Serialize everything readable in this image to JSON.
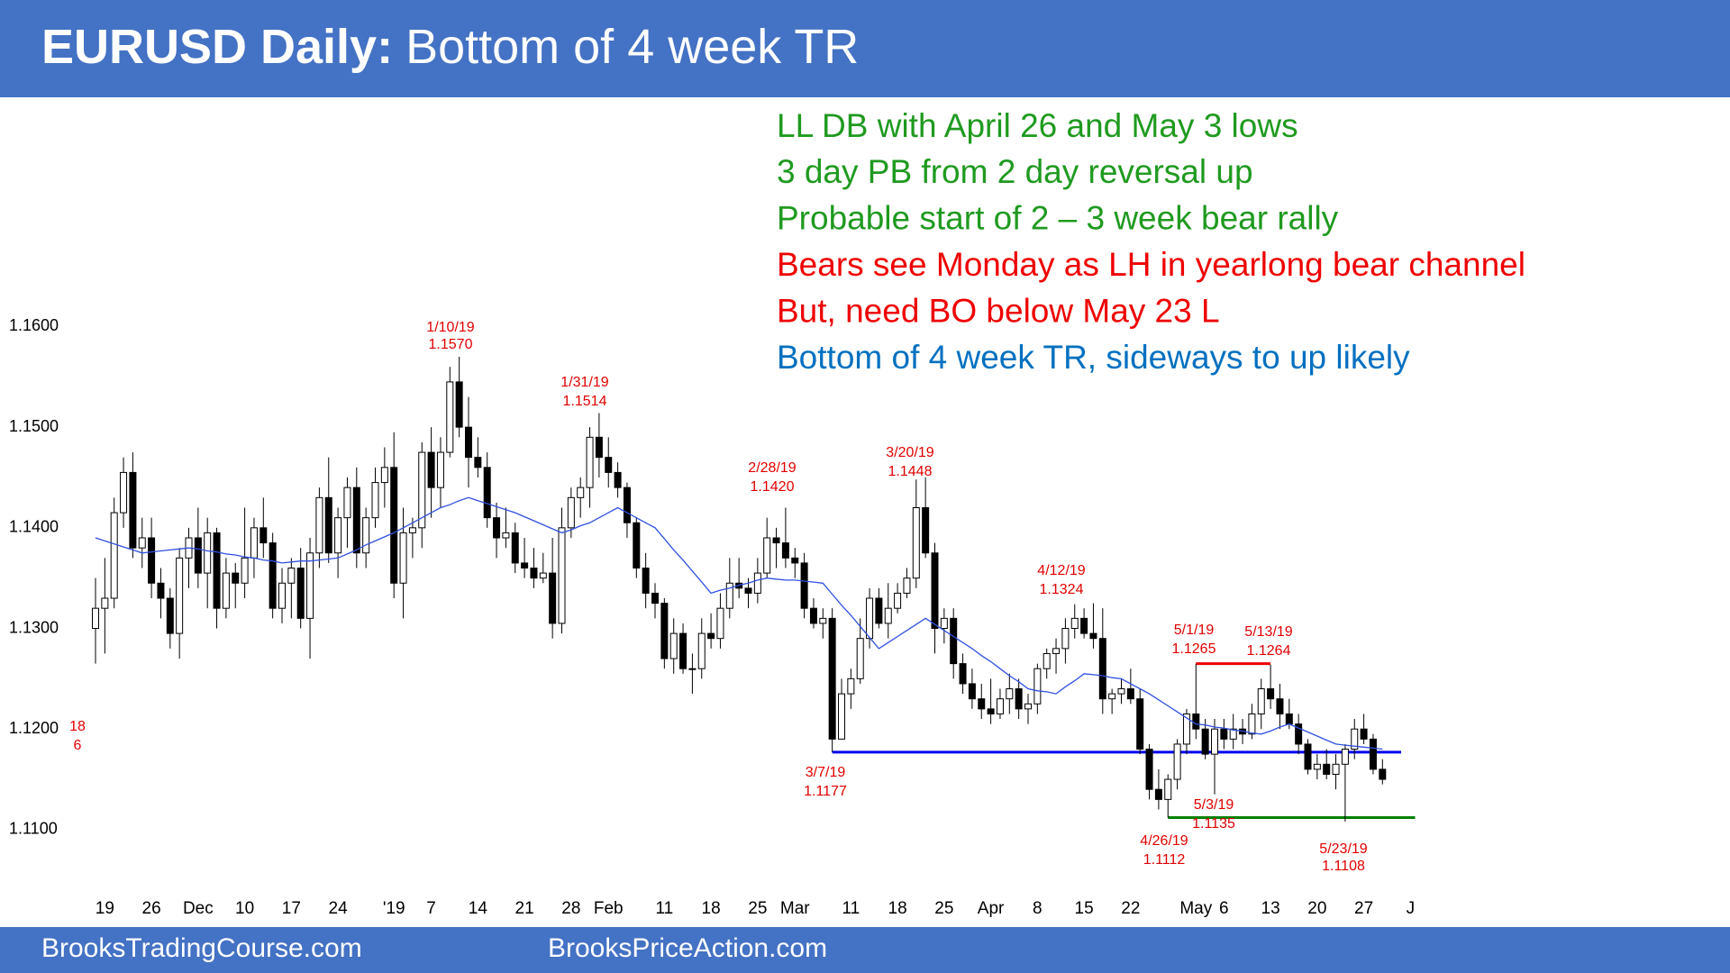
{
  "header": {
    "title_bold": "EURUSD Daily:",
    "title_rest": "Bottom of 4 week TR"
  },
  "notes": [
    {
      "text": "LL DB with April 26 and May 3 lows",
      "color": "#1f9a1f"
    },
    {
      "text": "3 day PB from 2 day reversal up",
      "color": "#1f9a1f"
    },
    {
      "text": "Probable start of 2 – 3 week bear rally",
      "color": "#1f9a1f"
    },
    {
      "text": "Bears see Monday as LH in yearlong bear channel",
      "color": "#ee0000"
    },
    {
      "text": "But, need BO below May 23 L",
      "color": "#ee0000"
    },
    {
      "text": "Bottom of 4 week TR, sideways to up likely",
      "color": "#0070c0"
    }
  ],
  "chart_data": {
    "type": "candlestick",
    "open": [
      1.13,
      1.132,
      1.133,
      1.1415,
      1.1455,
      1.138,
      1.139,
      1.1345,
      1.133,
      1.1295,
      1.137,
      1.139,
      1.1355,
      1.1395,
      1.132,
      1.1355,
      1.1345,
      1.137,
      1.14,
      1.1385,
      1.132,
      1.1345,
      1.136,
      1.131,
      1.1375,
      1.143,
      1.1375,
      1.141,
      1.144,
      1.1375,
      1.141,
      1.1445,
      1.146,
      1.1345,
      1.1395,
      1.14,
      1.1475,
      1.144,
      1.1475,
      1.1545,
      1.15,
      1.147,
      1.146,
      1.141,
      1.139,
      1.1395,
      1.1365,
      1.136,
      1.135,
      1.1355,
      1.1305,
      1.14,
      1.143,
      1.144,
      1.149,
      1.147,
      1.1455,
      1.144,
      1.1405,
      1.136,
      1.1335,
      1.1325,
      1.127,
      1.1295,
      1.126,
      1.126,
      1.1295,
      1.129,
      1.132,
      1.1345,
      1.134,
      1.1335,
      1.1355,
      1.139,
      1.1385,
      1.137,
      1.1365,
      1.132,
      1.1305,
      1.131,
      1.119,
      1.1235,
      1.125,
      1.129,
      1.133,
      1.1305,
      1.132,
      1.1335,
      1.135,
      1.142,
      1.1375,
      1.13,
      1.131,
      1.1265,
      1.1245,
      1.123,
      1.122,
      1.1215,
      1.123,
      1.124,
      1.122,
      1.1225,
      1.126,
      1.1275,
      1.128,
      1.13,
      1.131,
      1.1295,
      1.129,
      1.123,
      1.1235,
      1.124,
      1.123,
      1.118,
      1.114,
      1.113,
      1.115,
      1.1185,
      1.1215,
      1.12,
      1.1175,
      1.12,
      1.119,
      1.12,
      1.1195,
      1.1215,
      1.124,
      1.123,
      1.1215,
      1.1205,
      1.1185,
      1.116,
      1.1165,
      1.1155,
      1.1165,
      1.118,
      1.12,
      1.119,
      1.116
    ],
    "high": [
      1.135,
      1.137,
      1.143,
      1.147,
      1.1475,
      1.141,
      1.141,
      1.136,
      1.134,
      1.138,
      1.14,
      1.142,
      1.141,
      1.14,
      1.137,
      1.1365,
      1.142,
      1.141,
      1.143,
      1.1395,
      1.136,
      1.137,
      1.138,
      1.139,
      1.144,
      1.147,
      1.142,
      1.145,
      1.146,
      1.142,
      1.146,
      1.148,
      1.1495,
      1.142,
      1.141,
      1.1485,
      1.15,
      1.149,
      1.156,
      1.157,
      1.153,
      1.149,
      1.1475,
      1.1425,
      1.142,
      1.1405,
      1.139,
      1.138,
      1.1375,
      1.139,
      1.142,
      1.144,
      1.145,
      1.15,
      1.1514,
      1.149,
      1.1465,
      1.1445,
      1.141,
      1.1375,
      1.1345,
      1.133,
      1.131,
      1.1305,
      1.1275,
      1.131,
      1.1315,
      1.1335,
      1.137,
      1.137,
      1.135,
      1.137,
      1.141,
      1.14,
      1.142,
      1.138,
      1.1375,
      1.133,
      1.132,
      1.132,
      1.125,
      1.126,
      1.131,
      1.134,
      1.134,
      1.1345,
      1.1345,
      1.136,
      1.1448,
      1.145,
      1.1385,
      1.132,
      1.132,
      1.1275,
      1.126,
      1.1245,
      1.125,
      1.124,
      1.1255,
      1.125,
      1.1235,
      1.1265,
      1.128,
      1.129,
      1.131,
      1.1324,
      1.132,
      1.1325,
      1.132,
      1.124,
      1.125,
      1.126,
      1.124,
      1.1185,
      1.116,
      1.1155,
      1.119,
      1.122,
      1.1265,
      1.121,
      1.121,
      1.121,
      1.1215,
      1.121,
      1.1225,
      1.125,
      1.1264,
      1.1245,
      1.123,
      1.1215,
      1.119,
      1.1175,
      1.118,
      1.1175,
      1.1185,
      1.121,
      1.1215,
      1.1195,
      1.117
    ],
    "low": [
      1.1265,
      1.1275,
      1.132,
      1.14,
      1.137,
      1.136,
      1.133,
      1.131,
      1.128,
      1.127,
      1.134,
      1.134,
      1.132,
      1.13,
      1.131,
      1.132,
      1.133,
      1.135,
      1.137,
      1.131,
      1.1305,
      1.131,
      1.13,
      1.127,
      1.136,
      1.1365,
      1.135,
      1.138,
      1.136,
      1.136,
      1.14,
      1.142,
      1.133,
      1.131,
      1.137,
      1.138,
      1.141,
      1.142,
      1.147,
      1.149,
      1.144,
      1.145,
      1.14,
      1.137,
      1.138,
      1.1355,
      1.135,
      1.134,
      1.1345,
      1.129,
      1.1295,
      1.139,
      1.141,
      1.142,
      1.145,
      1.144,
      1.143,
      1.139,
      1.135,
      1.132,
      1.131,
      1.126,
      1.1255,
      1.1255,
      1.1235,
      1.125,
      1.128,
      1.128,
      1.131,
      1.133,
      1.132,
      1.1325,
      1.135,
      1.136,
      1.136,
      1.135,
      1.131,
      1.13,
      1.129,
      1.1177,
      1.119,
      1.122,
      1.1245,
      1.128,
      1.13,
      1.129,
      1.1315,
      1.133,
      1.134,
      1.137,
      1.1275,
      1.1285,
      1.125,
      1.1235,
      1.122,
      1.121,
      1.1205,
      1.121,
      1.1215,
      1.121,
      1.1205,
      1.1215,
      1.125,
      1.1255,
      1.1265,
      1.129,
      1.129,
      1.128,
      1.1215,
      1.1215,
      1.1225,
      1.1225,
      1.1175,
      1.113,
      1.112,
      1.1112,
      1.114,
      1.1175,
      1.119,
      1.117,
      1.1135,
      1.118,
      1.118,
      1.1185,
      1.119,
      1.12,
      1.122,
      1.12,
      1.12,
      1.1175,
      1.1155,
      1.115,
      1.115,
      1.114,
      1.1108,
      1.117,
      1.1185,
      1.1155,
      1.1145
    ],
    "close": [
      1.132,
      1.133,
      1.1415,
      1.1455,
      1.138,
      1.139,
      1.1345,
      1.133,
      1.1295,
      1.137,
      1.139,
      1.1355,
      1.1395,
      1.132,
      1.1355,
      1.1345,
      1.137,
      1.14,
      1.1385,
      1.132,
      1.1345,
      1.136,
      1.131,
      1.1375,
      1.143,
      1.1375,
      1.141,
      1.144,
      1.1375,
      1.141,
      1.1445,
      1.146,
      1.1345,
      1.1395,
      1.14,
      1.1475,
      1.144,
      1.1475,
      1.1545,
      1.15,
      1.147,
      1.146,
      1.141,
      1.139,
      1.1395,
      1.1365,
      1.136,
      1.135,
      1.1355,
      1.1305,
      1.14,
      1.143,
      1.144,
      1.149,
      1.147,
      1.1455,
      1.144,
      1.1405,
      1.136,
      1.1335,
      1.1325,
      1.127,
      1.1295,
      1.126,
      1.126,
      1.1295,
      1.129,
      1.132,
      1.1345,
      1.134,
      1.1335,
      1.1355,
      1.139,
      1.1385,
      1.137,
      1.1365,
      1.132,
      1.1305,
      1.131,
      1.119,
      1.1235,
      1.125,
      1.129,
      1.133,
      1.1305,
      1.132,
      1.1335,
      1.135,
      1.142,
      1.1375,
      1.13,
      1.131,
      1.1265,
      1.1245,
      1.123,
      1.122,
      1.1215,
      1.123,
      1.124,
      1.122,
      1.1225,
      1.126,
      1.1275,
      1.128,
      1.13,
      1.131,
      1.1295,
      1.129,
      1.123,
      1.1235,
      1.124,
      1.123,
      1.118,
      1.114,
      1.113,
      1.115,
      1.1185,
      1.1215,
      1.12,
      1.1175,
      1.12,
      1.119,
      1.12,
      1.1195,
      1.1215,
      1.124,
      1.123,
      1.1215,
      1.1205,
      1.1185,
      1.116,
      1.1165,
      1.1155,
      1.1165,
      1.118,
      1.12,
      1.119,
      1.116,
      1.115
    ],
    "ma": {
      "color": "#3050e0",
      "values": [
        1.139,
        1.1387,
        1.1384,
        1.1381,
        1.1378,
        1.1375,
        1.1376,
        1.1377,
        1.1378,
        1.1379,
        1.138,
        1.1379,
        1.1377,
        1.1376,
        1.1374,
        1.1373,
        1.1371,
        1.137,
        1.1368,
        1.1367,
        1.1365,
        1.1366,
        1.1367,
        1.1367,
        1.1368,
        1.1369,
        1.137,
        1.1374,
        1.1378,
        1.1383,
        1.1387,
        1.1391,
        1.1395,
        1.14,
        1.1405,
        1.141,
        1.1415,
        1.142,
        1.1423,
        1.1427,
        1.143,
        1.1427,
        1.1424,
        1.1421,
        1.1418,
        1.1415,
        1.1411,
        1.1407,
        1.1403,
        1.1399,
        1.1395,
        1.1398,
        1.1402,
        1.1405,
        1.141,
        1.1415,
        1.142,
        1.1415,
        1.141,
        1.1405,
        1.14,
        1.1389,
        1.1378,
        1.1368,
        1.1357,
        1.1346,
        1.1335,
        1.1338,
        1.134,
        1.1343,
        1.1345,
        1.1348,
        1.135,
        1.1349,
        1.1348,
        1.1348,
        1.1347,
        1.1346,
        1.1345,
        1.1334,
        1.1323,
        1.1313,
        1.1302,
        1.1291,
        1.128,
        1.1286,
        1.1292,
        1.1298,
        1.1304,
        1.131,
        1.1304,
        1.1298,
        1.1292,
        1.1286,
        1.128,
        1.1273,
        1.1267,
        1.126,
        1.1253,
        1.1247,
        1.124,
        1.1238,
        1.1237,
        1.1235,
        1.1242,
        1.1248,
        1.1255,
        1.1254,
        1.1253,
        1.1251,
        1.125,
        1.1245,
        1.124,
        1.1235,
        1.1229,
        1.1223,
        1.1217,
        1.1211,
        1.1205,
        1.1204,
        1.1202,
        1.1201,
        1.1199,
        1.1198,
        1.1196,
        1.1195,
        1.1198,
        1.1202,
        1.1205,
        1.1201,
        1.1197,
        1.1193,
        1.1189,
        1.1185,
        1.1184,
        1.1183,
        1.1182,
        1.1181,
        1.118
      ]
    },
    "ylim": [
      1.1045,
      1.1825
    ],
    "yticks": [
      {
        "value": 1.11,
        "label": "1.1100"
      },
      {
        "value": 1.12,
        "label": "1.1200"
      },
      {
        "value": 1.13,
        "label": "1.1300"
      },
      {
        "value": 1.14,
        "label": "1.1400"
      },
      {
        "value": 1.15,
        "label": "1.1500"
      },
      {
        "value": 1.16,
        "label": "1.1600"
      }
    ],
    "xticks": [
      {
        "value": 1,
        "label": "19"
      },
      {
        "value": 6,
        "label": "26"
      },
      {
        "value": 11,
        "label": "Dec"
      },
      {
        "value": 16,
        "label": "10"
      },
      {
        "value": 21,
        "label": "17"
      },
      {
        "value": 26,
        "label": "24"
      },
      {
        "value": 32,
        "label": "'19"
      },
      {
        "value": 36,
        "label": "7"
      },
      {
        "value": 41,
        "label": "14"
      },
      {
        "value": 46,
        "label": "21"
      },
      {
        "value": 51,
        "label": "28"
      },
      {
        "value": 55,
        "label": "Feb"
      },
      {
        "value": 61,
        "label": "11"
      },
      {
        "value": 66,
        "label": "18"
      },
      {
        "value": 71,
        "label": "25"
      },
      {
        "value": 75,
        "label": "Mar"
      },
      {
        "value": 81,
        "label": "11"
      },
      {
        "value": 86,
        "label": "18"
      },
      {
        "value": 91,
        "label": "25"
      },
      {
        "value": 96,
        "label": "Apr"
      },
      {
        "value": 101,
        "label": "8"
      },
      {
        "value": 106,
        "label": "15"
      },
      {
        "value": 111,
        "label": "22"
      },
      {
        "value": 118,
        "label": "May"
      },
      {
        "value": 121,
        "label": "6"
      },
      {
        "value": 126,
        "label": "13"
      },
      {
        "value": 131,
        "label": "20"
      },
      {
        "value": 136,
        "label": "27"
      },
      {
        "value": 141,
        "label": "J"
      }
    ],
    "levels": [
      {
        "value": 1.1177,
        "color": "#0000ee"
      },
      {
        "value": 1.1265,
        "color": "#ee0000"
      },
      {
        "value": 1.1112,
        "color": "#008000"
      }
    ],
    "annotations": [
      {
        "date": "1/10/19",
        "price": "1.1570"
      },
      {
        "date": "1/31/19",
        "price": "1.1514"
      },
      {
        "date": "2/28/19",
        "price": "1.1420"
      },
      {
        "date": "3/20/19",
        "price": "1.1448"
      },
      {
        "date": "4/12/19",
        "price": "1.1324"
      },
      {
        "date": "3/7/19",
        "price": "1.1177"
      },
      {
        "date": "4/26/19",
        "price": "1.1112"
      },
      {
        "date": "5/1/19",
        "price": "1.1265"
      },
      {
        "date": "5/3/19",
        "price": "1.1135"
      },
      {
        "date": "5/13/19",
        "price": "1.1264"
      },
      {
        "date": "5/23/19",
        "price": "1.1108"
      }
    ],
    "counter": [
      "18",
      "6"
    ]
  },
  "footer": {
    "left": "BrooksTradingCourse.com",
    "right": "BrooksPriceAction.com"
  }
}
